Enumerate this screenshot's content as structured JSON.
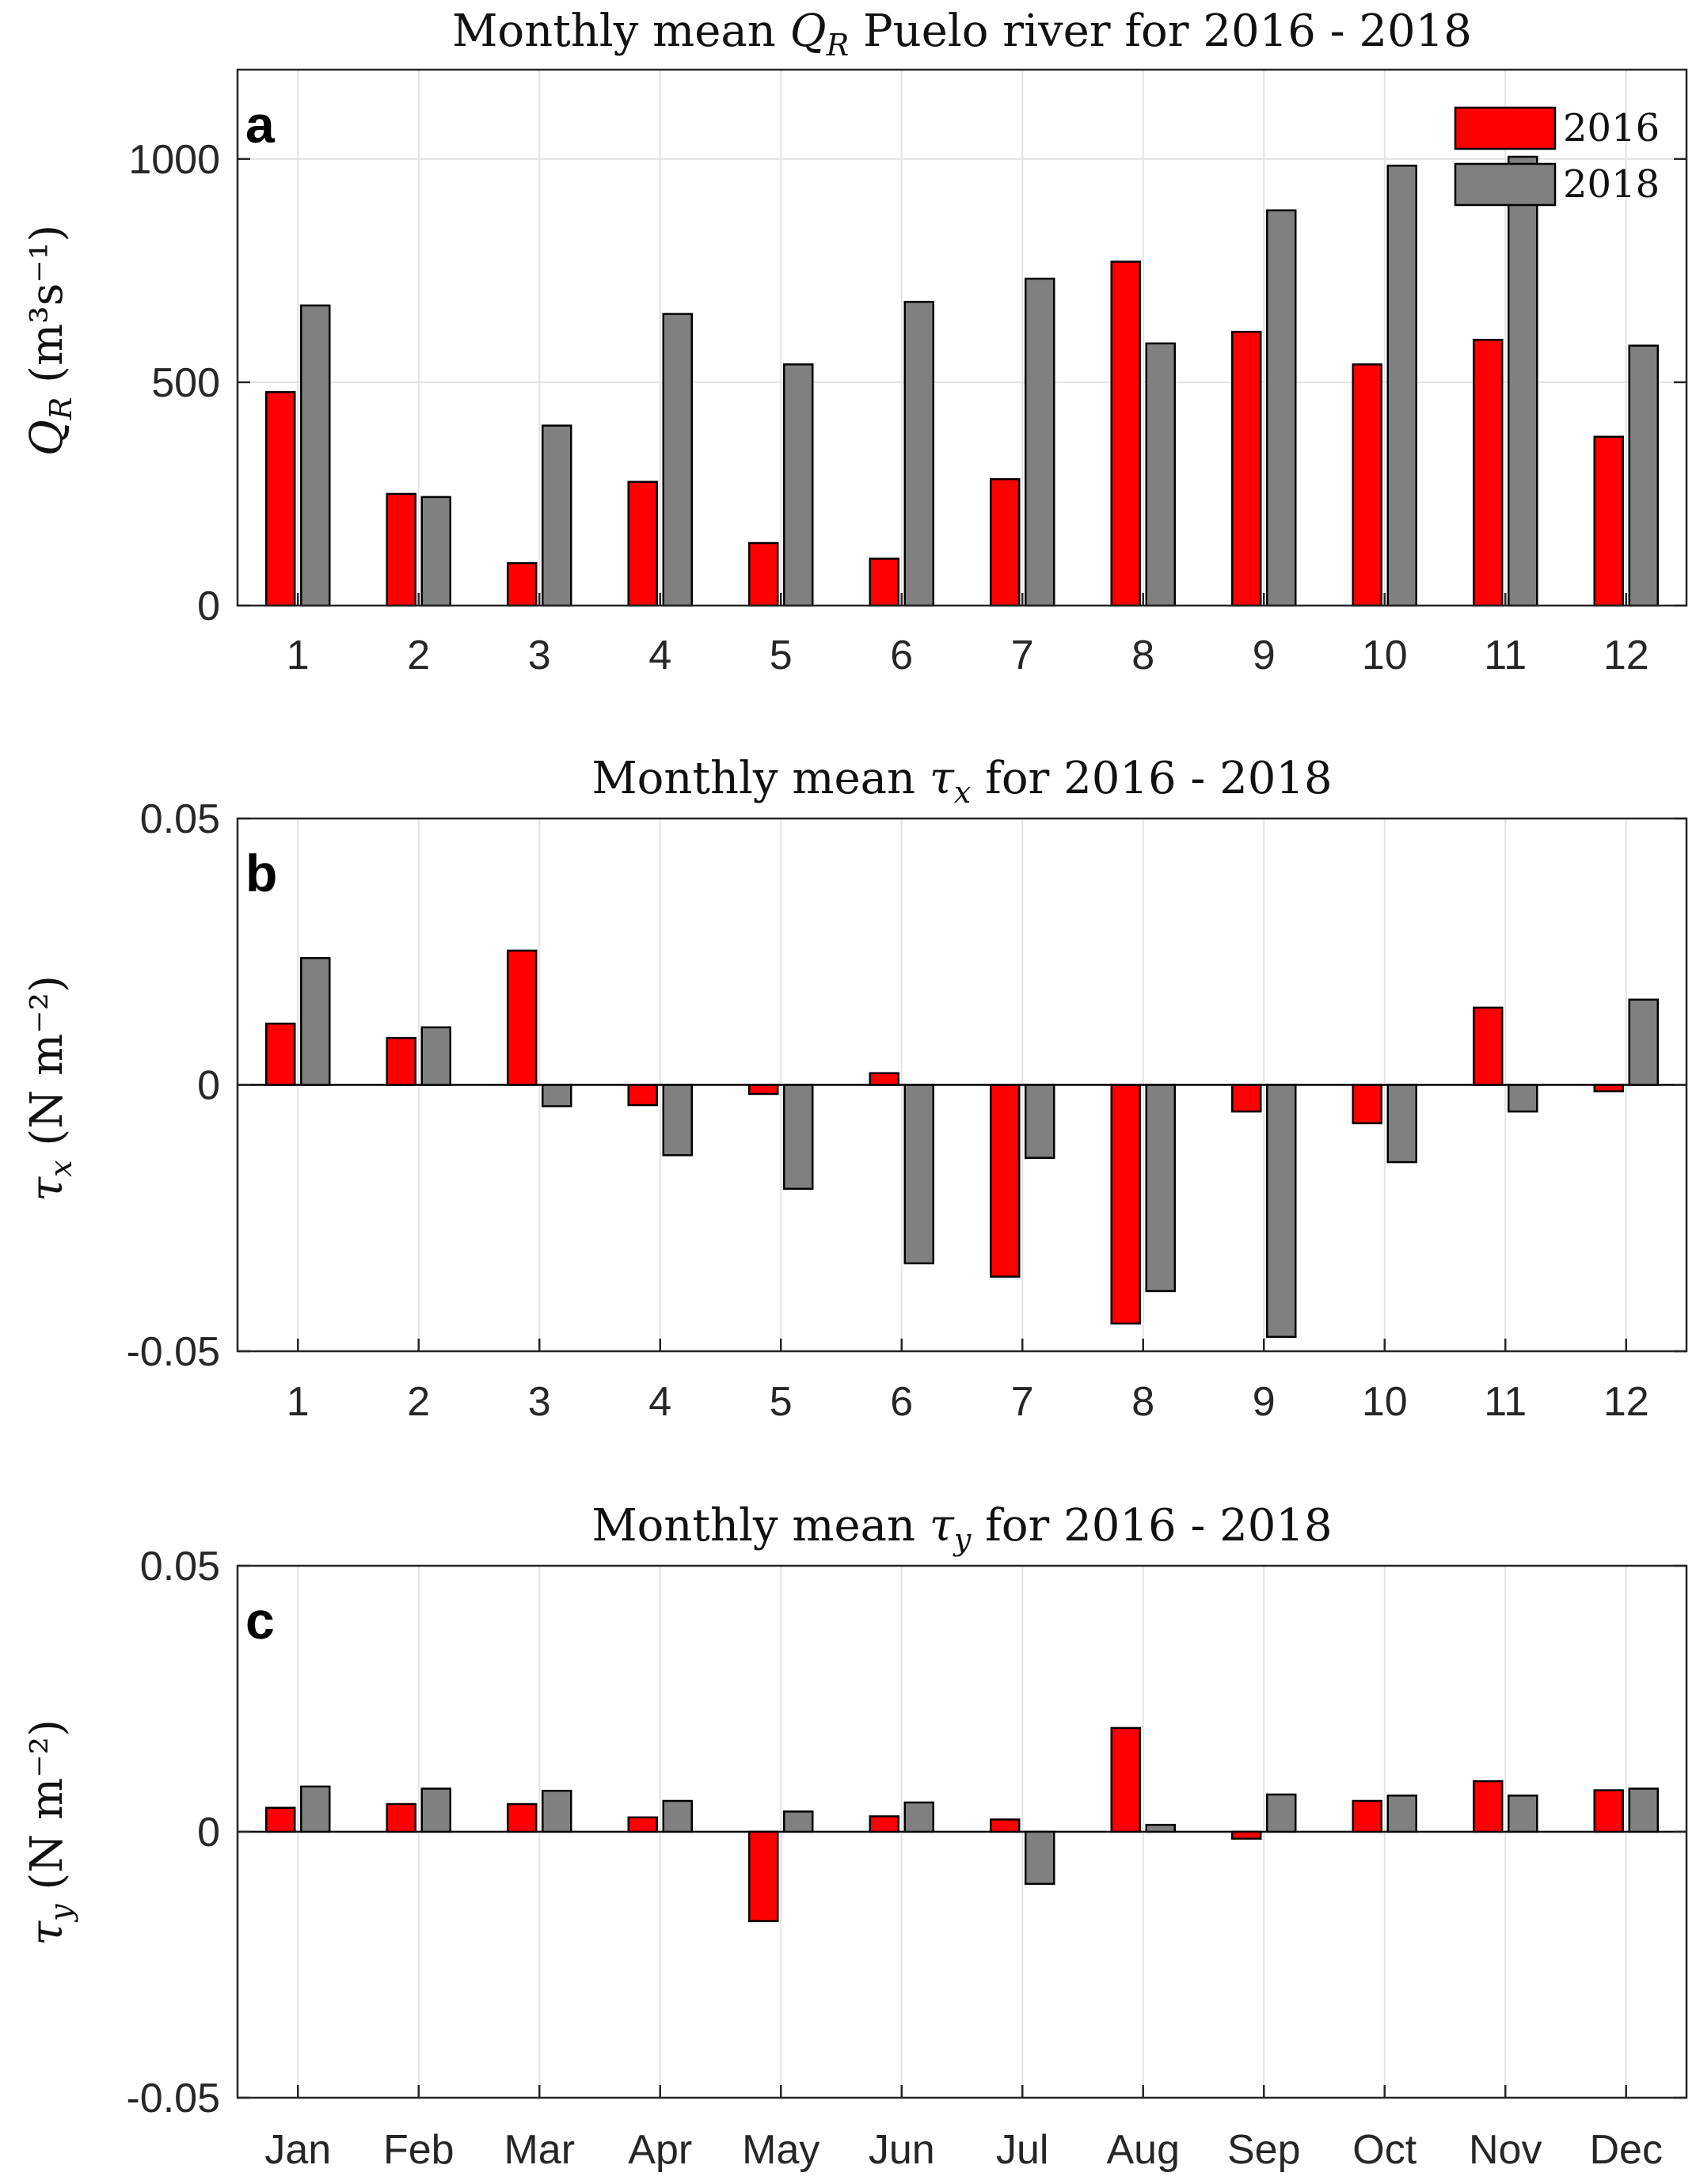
{
  "figure": {
    "legend": [
      {
        "label": "2016",
        "color": "#FF0000"
      },
      {
        "label": "2018",
        "color": "#808080"
      }
    ]
  },
  "chart_data": [
    {
      "type": "bar",
      "panel_label": "a",
      "title_prefix": "Monthly mean ",
      "title_symbol": "Q",
      "title_subscript": "R",
      "title_suffix": " Puelo river for 2016 - 2018",
      "ylabel_symbol": "Q",
      "ylabel_subscript": "R",
      "ylabel_units": "(m³s⁻¹)",
      "categories": [
        "1",
        "2",
        "3",
        "4",
        "5",
        "6",
        "7",
        "8",
        "9",
        "10",
        "11",
        "12"
      ],
      "series": [
        {
          "name": "2016",
          "color": "#FF0000",
          "values": [
            478,
            250,
            95,
            277,
            140,
            105,
            283,
            770,
            613,
            540,
            595,
            378
          ]
        },
        {
          "name": "2018",
          "color": "#808080",
          "values": [
            672,
            243,
            403,
            653,
            540,
            680,
            732,
            587,
            885,
            985,
            1005,
            582
          ]
        }
      ],
      "ylim": [
        0,
        1200
      ],
      "yticks": [
        0,
        500,
        1000
      ],
      "ytick_labels": [
        "0",
        "500",
        "1000"
      ],
      "grid": true,
      "legend_position": "top-right"
    },
    {
      "type": "bar",
      "panel_label": "b",
      "title_prefix": "Monthly mean ",
      "title_symbol": "τ",
      "title_subscript": "x",
      "title_suffix": " for 2016 - 2018",
      "ylabel_symbol": "τ",
      "ylabel_subscript": "x",
      "ylabel_units": "(N m⁻²)",
      "categories": [
        "1",
        "2",
        "3",
        "4",
        "5",
        "6",
        "7",
        "8",
        "9",
        "10",
        "11",
        "12"
      ],
      "series": [
        {
          "name": "2016",
          "color": "#FF0000",
          "values": [
            0.0115,
            0.0088,
            0.0252,
            -0.0038,
            -0.0017,
            0.0022,
            -0.036,
            -0.0448,
            -0.005,
            -0.0072,
            0.0145,
            -0.0012
          ]
        },
        {
          "name": "2018",
          "color": "#808080",
          "values": [
            0.0238,
            0.0108,
            -0.004,
            -0.0132,
            -0.0195,
            -0.0335,
            -0.0137,
            -0.0387,
            -0.0473,
            -0.0145,
            -0.005,
            0.016
          ]
        }
      ],
      "ylim": [
        -0.05,
        0.05
      ],
      "yticks": [
        -0.05,
        0,
        0.05
      ],
      "ytick_labels": [
        "-0.05",
        "0",
        "0.05"
      ],
      "grid": true
    },
    {
      "type": "bar",
      "panel_label": "c",
      "title_prefix": "Monthly mean ",
      "title_symbol": "τ",
      "title_subscript": "y",
      "title_suffix": " for 2016 - 2018",
      "ylabel_symbol": "τ",
      "ylabel_subscript": "y",
      "ylabel_units": "(N m⁻²)",
      "categories": [
        "Jan",
        "Feb",
        "Mar",
        "Apr",
        "May",
        "Jun",
        "Jul",
        "Aug",
        "Sep",
        "Oct",
        "Nov",
        "Dec"
      ],
      "series": [
        {
          "name": "2016",
          "color": "#FF0000",
          "values": [
            0.0045,
            0.0052,
            0.0052,
            0.0027,
            -0.0168,
            0.0029,
            0.0023,
            0.0195,
            -0.0013,
            0.0058,
            0.0095,
            0.0078
          ]
        },
        {
          "name": "2018",
          "color": "#808080",
          "values": [
            0.0085,
            0.0081,
            0.0077,
            0.0058,
            0.0038,
            0.0055,
            -0.0098,
            0.0013,
            0.007,
            0.0068,
            0.0068,
            0.0081
          ]
        }
      ],
      "ylim": [
        -0.05,
        0.05
      ],
      "yticks": [
        -0.05,
        0,
        0.05
      ],
      "ytick_labels": [
        "-0.05",
        "0",
        "0.05"
      ],
      "grid": true
    }
  ]
}
